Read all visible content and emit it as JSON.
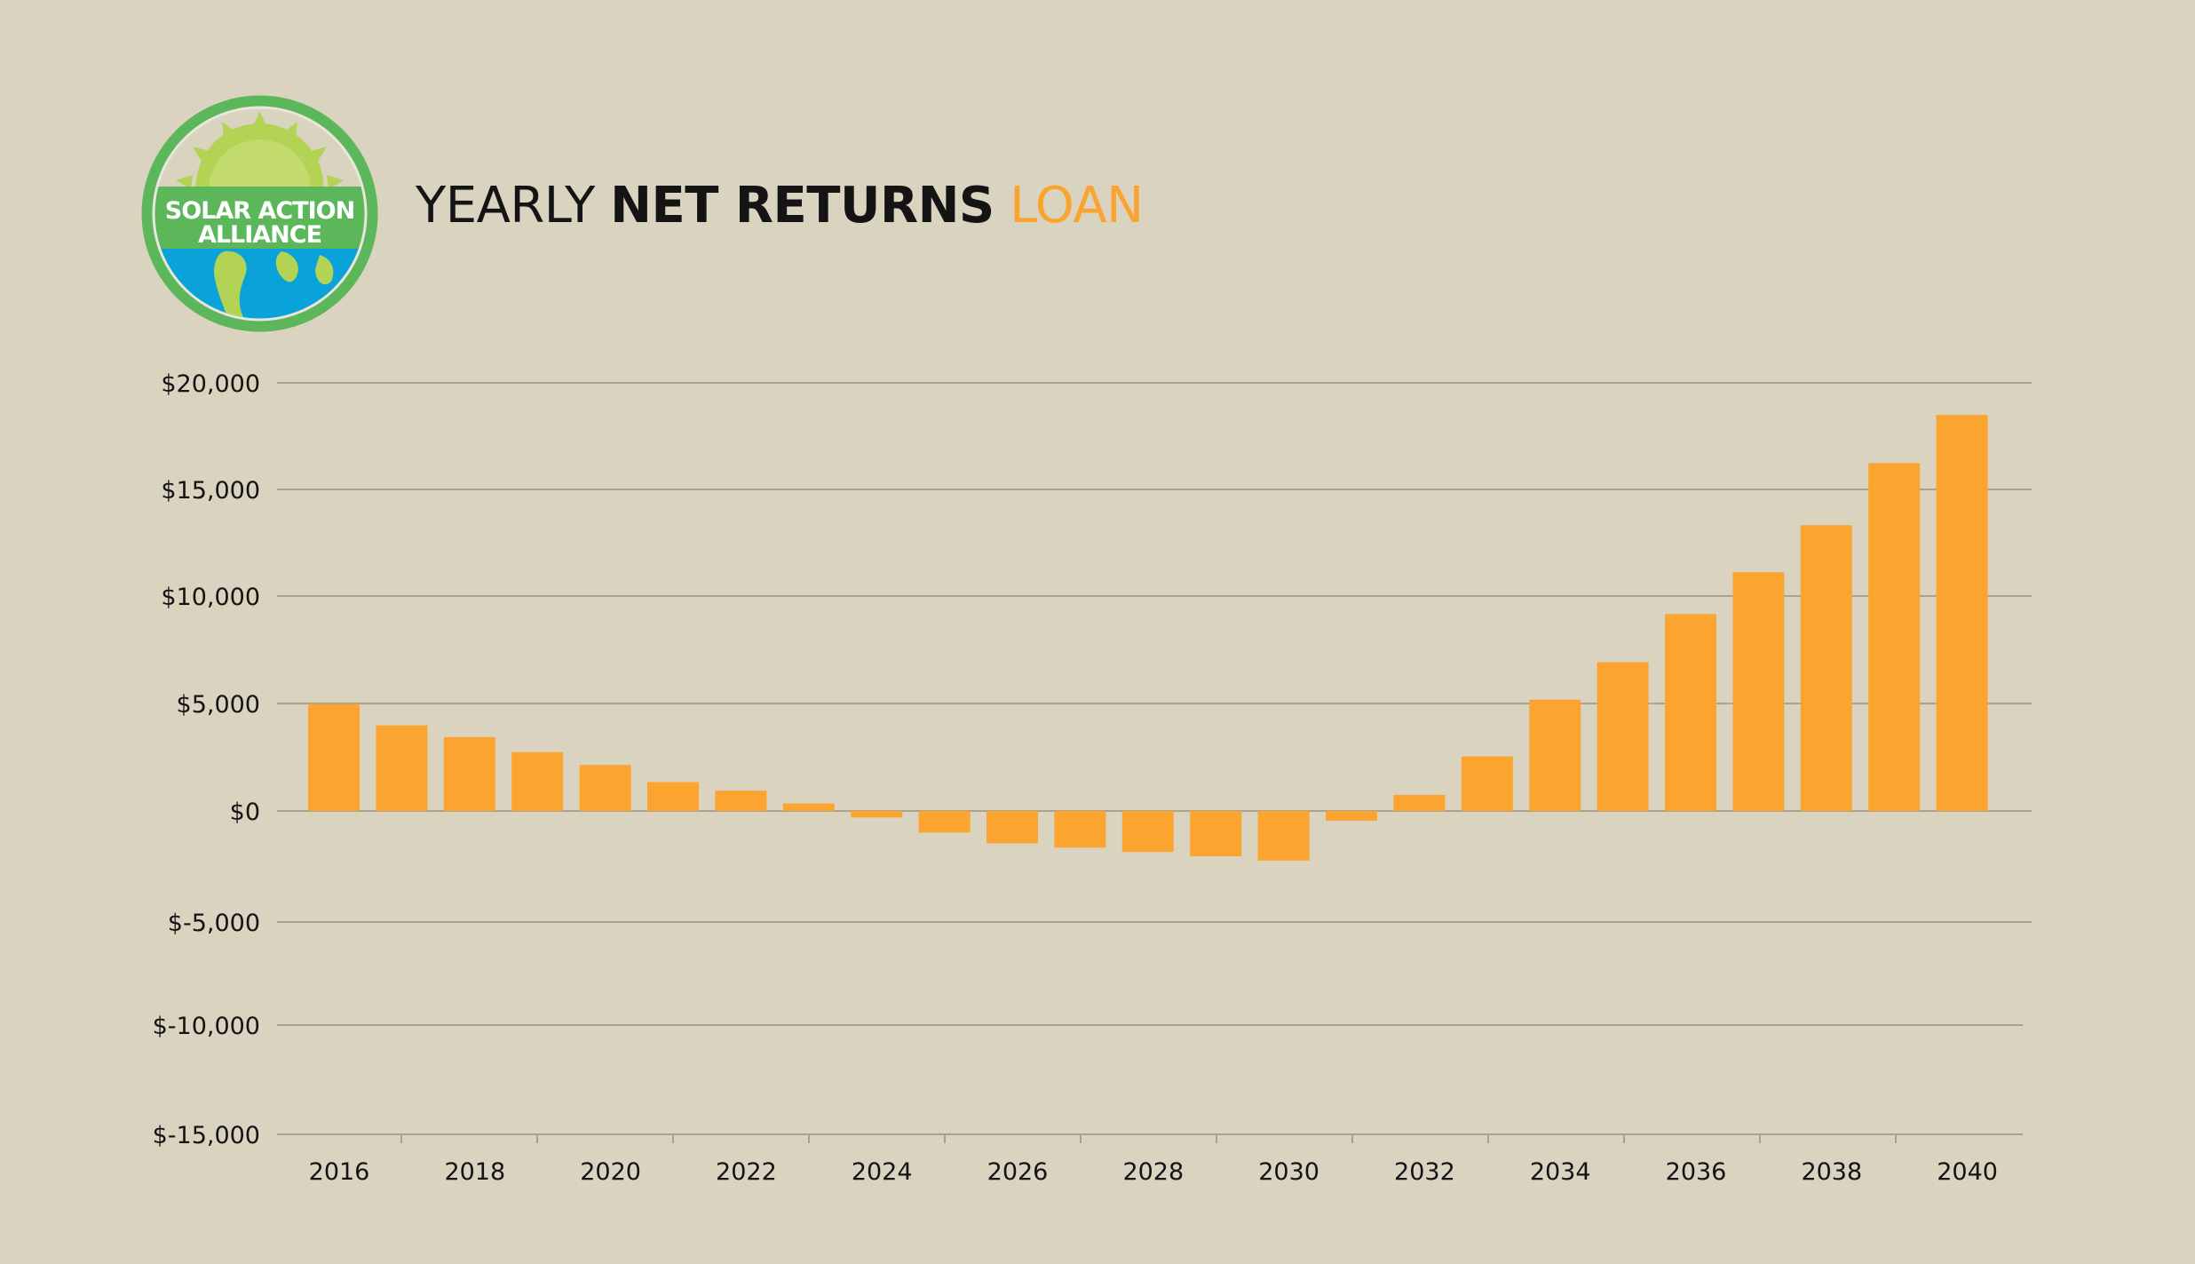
{
  "brand": {
    "logo_line1": "SOLAR ACTION",
    "logo_line2": "ALLIANCE"
  },
  "colors": {
    "background": "#dad3c0",
    "bar": "#fba430",
    "title_accent": "#f9a42f",
    "title_text": "#141414",
    "logo_green": "#5bb75a",
    "logo_lime": "#b2d354",
    "logo_blue": "#0aa3d9"
  },
  "title": {
    "part1": "YEARLY ",
    "part2": "NET RETURNS",
    "part3": " LOAN"
  },
  "chart_data": {
    "type": "bar",
    "title": "YEARLY NET RETURNS LOAN",
    "xlabel": "",
    "ylabel": "",
    "ylim": [
      -15000,
      20000
    ],
    "grid": true,
    "legend": "none",
    "y_ticks": [
      20000,
      15000,
      10000,
      5000,
      0,
      -5000,
      -10000,
      -15000
    ],
    "y_tick_labels": [
      "$20,000",
      "$15,000",
      "$10,000",
      "$5,000",
      "$0",
      "$-5,000",
      "$-10,000",
      "$-15,000"
    ],
    "categories": [
      "2016",
      "2017",
      "2018",
      "2019",
      "2020",
      "2021",
      "2022",
      "2023",
      "2024",
      "2025",
      "2026",
      "2027",
      "2028",
      "2029",
      "2030",
      "2031",
      "2032",
      "2033",
      "2034",
      "2035",
      "2036",
      "2037",
      "2038",
      "2039",
      "2040"
    ],
    "x_tick_labels": [
      "2016",
      "2018",
      "2020",
      "2022",
      "2024",
      "2026",
      "2028",
      "2030",
      "2032",
      "2034",
      "2036",
      "2038",
      "2040"
    ],
    "values": [
      5000,
      4000,
      3450,
      2750,
      2150,
      1350,
      950,
      350,
      -300,
      -1000,
      -1500,
      -1700,
      -1900,
      -2100,
      -2300,
      -450,
      750,
      2550,
      5200,
      6950,
      9200,
      11150,
      13350,
      16250,
      18500
    ]
  }
}
